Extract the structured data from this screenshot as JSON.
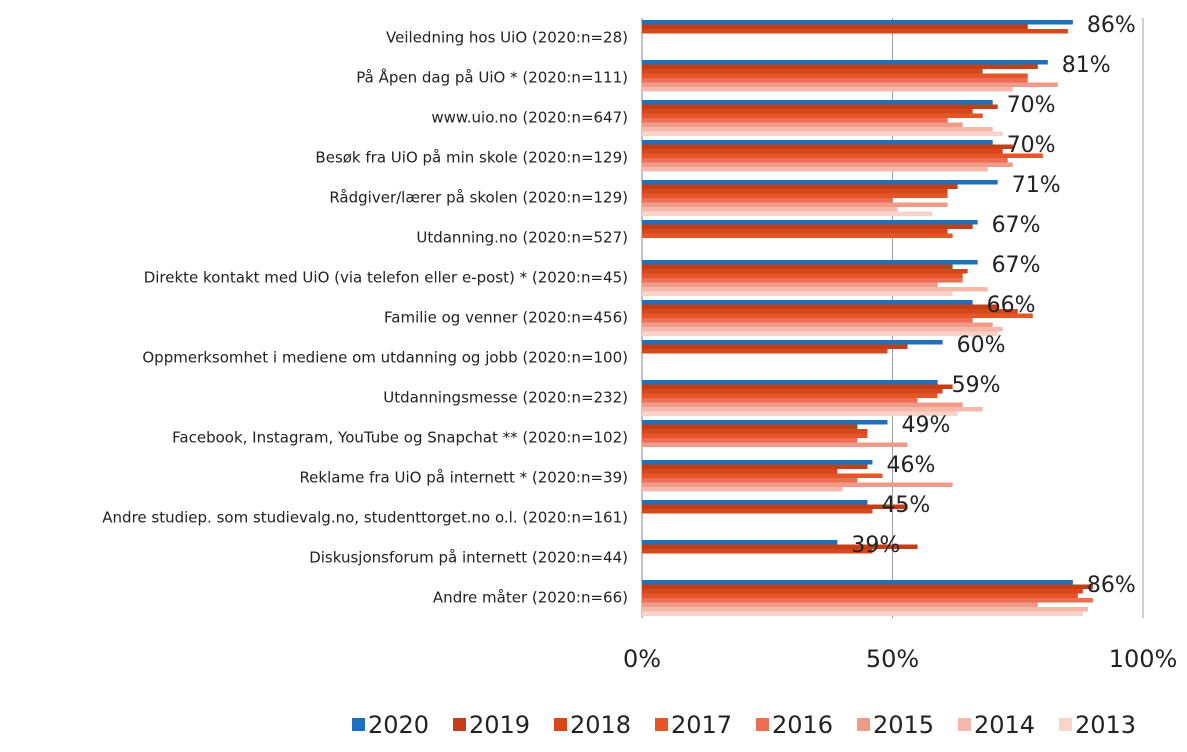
{
  "chart_data": {
    "type": "bar",
    "orientation": "horizontal",
    "categories": [
      "Veiledning hos UiO (2020:n=28)",
      "På Åpen dag på UiO * (2020:n=111)",
      "www.uio.no (2020:n=647)",
      "Besøk fra UiO på min skole (2020:n=129)",
      "Rådgiver/lærer på skolen (2020:n=129)",
      "Utdanning.no (2020:n=527)",
      "Direkte kontakt med UiO (via telefon eller e-post) * (2020:n=45)",
      "Familie og venner (2020:n=456)",
      "Oppmerksomhet i mediene om utdanning og jobb (2020:n=100)",
      "Utdanningsmesse (2020:n=232)",
      "Facebook, Instagram, YouTube og Snapchat ** (2020:n=102)",
      "Reklame fra UiO på internett * (2020:n=39)",
      "Andre studiep. som studievalg.no, studenttorget.no o.l. (2020:n=161)",
      "Diskusjonsforum på internett (2020:n=44)",
      "Andre måter (2020:n=66)"
    ],
    "series": [
      {
        "name": "2020",
        "color": "#1f6fc0",
        "values": [
          86,
          81,
          70,
          70,
          71,
          67,
          67,
          66,
          60,
          59,
          49,
          46,
          45,
          39,
          86
        ],
        "value_labels": [
          "86%",
          "81%",
          "70%",
          "70%",
          "71%",
          "67%",
          "67%",
          "66%",
          "60%",
          "59%",
          "49%",
          "46%",
          "45%",
          "39%",
          "86%"
        ]
      },
      {
        "name": "2019",
        "color": "#c43e18",
        "values": [
          77,
          79,
          71,
          74,
          63,
          66,
          62,
          71,
          53,
          62,
          43,
          45,
          53,
          55,
          90
        ]
      },
      {
        "name": "2018",
        "color": "#d6481c",
        "values": [
          85,
          68,
          66,
          72,
          61,
          61,
          65,
          75,
          49,
          60,
          45,
          39,
          46,
          46,
          88
        ]
      },
      {
        "name": "2017",
        "color": "#e65528",
        "values": [
          null,
          77,
          68,
          80,
          61,
          62,
          64,
          78,
          null,
          59,
          45,
          48,
          null,
          null,
          87
        ]
      },
      {
        "name": "2016",
        "color": "#ec6e55",
        "values": [
          null,
          77,
          61,
          73,
          50,
          null,
          64,
          66,
          null,
          55,
          43,
          43,
          null,
          null,
          90
        ]
      },
      {
        "name": "2015",
        "color": "#f09a8a",
        "values": [
          null,
          83,
          64,
          74,
          61,
          null,
          59,
          70,
          null,
          64,
          53,
          62,
          null,
          null,
          79
        ]
      },
      {
        "name": "2014",
        "color": "#f5b8aa",
        "values": [
          null,
          74,
          70,
          69,
          51,
          null,
          69,
          72,
          null,
          68,
          null,
          40,
          null,
          null,
          89
        ]
      },
      {
        "name": "2013",
        "color": "#f9d3c9",
        "values": [
          null,
          null,
          72,
          null,
          58,
          null,
          62,
          71,
          null,
          63,
          null,
          null,
          null,
          null,
          88
        ]
      }
    ],
    "xlim": [
      0,
      100
    ],
    "xticks": [
      {
        "value": 0,
        "label": "0%"
      },
      {
        "value": 50,
        "label": "50%"
      },
      {
        "value": 100,
        "label": "100%"
      }
    ],
    "grid": true,
    "legend": "bottom"
  }
}
